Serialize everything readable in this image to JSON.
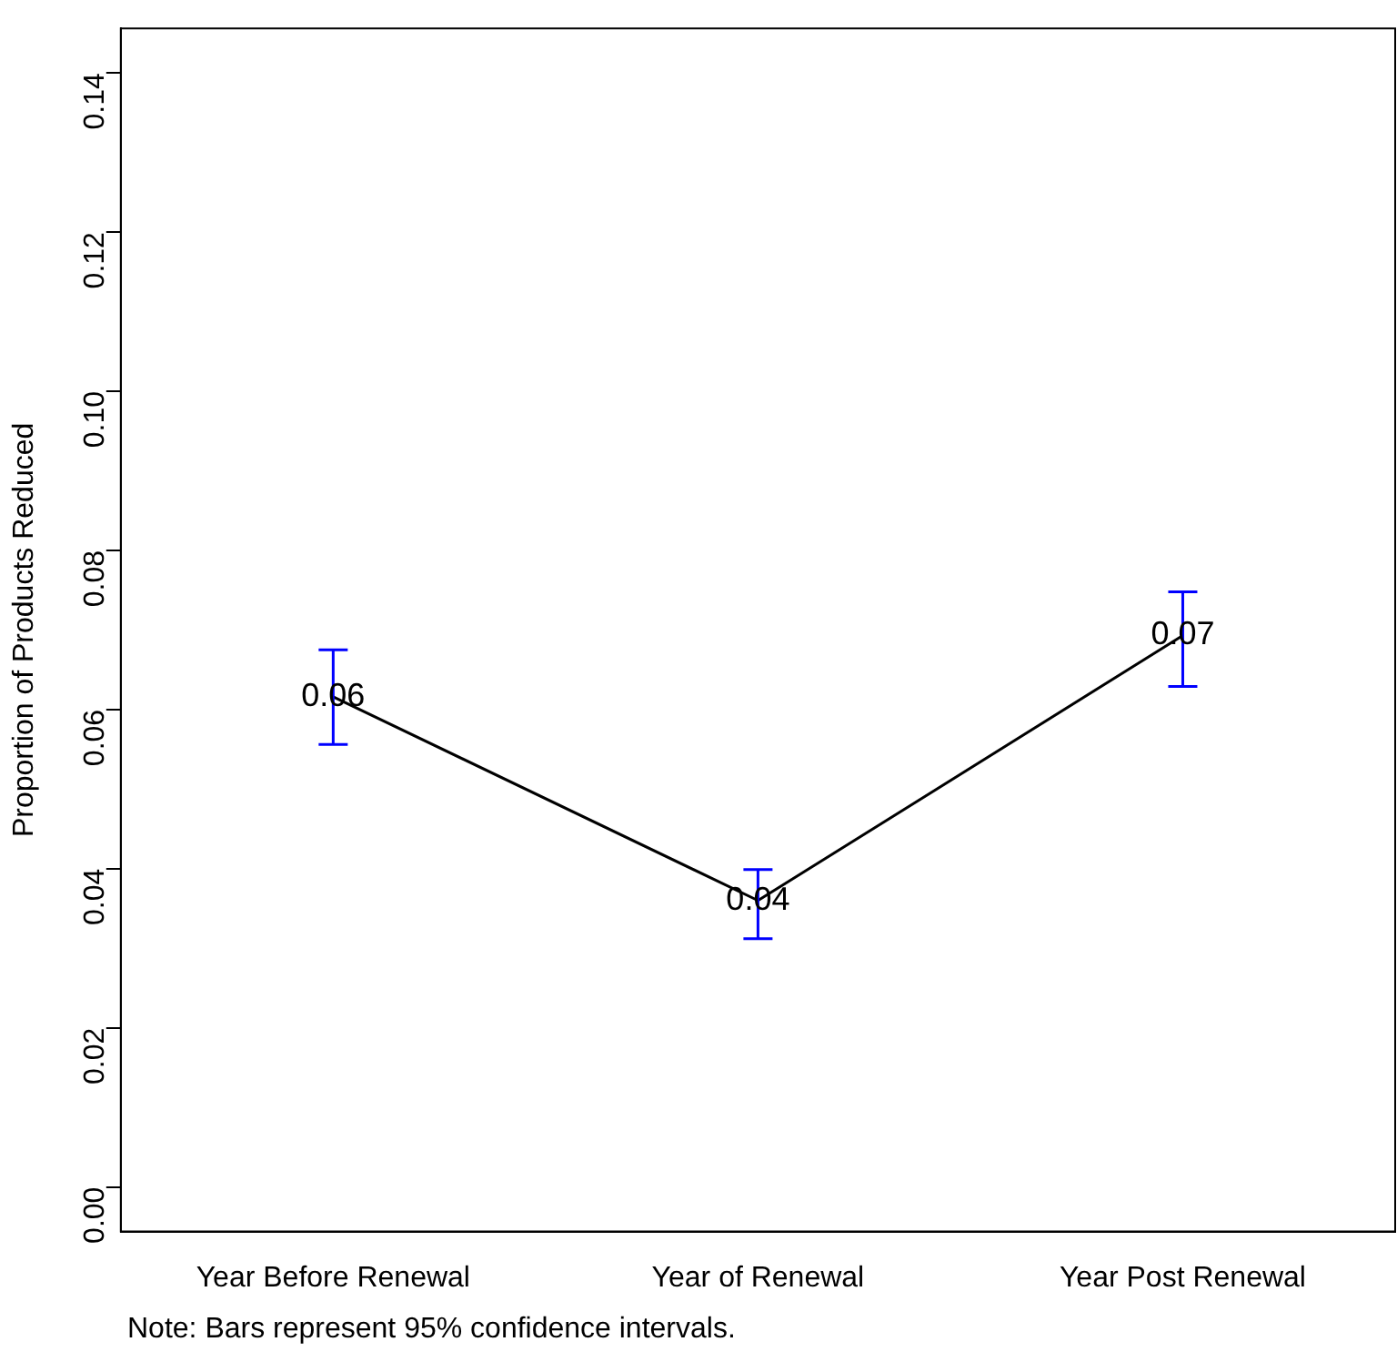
{
  "chart_data": {
    "type": "line",
    "ylabel": "Proportion of Products Reduced",
    "categories": [
      "Year Before Renewal",
      "Year of Renewal",
      "Year Post Renewal"
    ],
    "series": [
      {
        "color": "#000000",
        "values": [
          0.0616,
          0.036,
          0.0693
        ],
        "errors": [
          [
            0.0556,
            0.0675
          ],
          [
            0.0312,
            0.0399
          ],
          [
            0.0629,
            0.0748
          ]
        ],
        "value_labels": [
          "0.06",
          "0.04",
          "0.07"
        ]
      }
    ],
    "ylim": [
      -0.0056,
      0.1456
    ],
    "yticks": [
      {
        "value": 0,
        "label": "0.00"
      },
      {
        "value": 0.02,
        "label": "0.02"
      },
      {
        "value": 0.04,
        "label": "0.04"
      },
      {
        "value": 0.06,
        "label": "0.06"
      },
      {
        "value": 0.08,
        "label": "0.08"
      },
      {
        "value": 0.1,
        "label": "0.10"
      },
      {
        "value": 0.12,
        "label": "0.12"
      },
      {
        "value": 0.14,
        "label": "0.14"
      }
    ],
    "grid": false,
    "legend": false,
    "marker": "none",
    "line_style": "solid",
    "annotations": [
      "Note: Bars represent 95% confidence intervals."
    ]
  }
}
